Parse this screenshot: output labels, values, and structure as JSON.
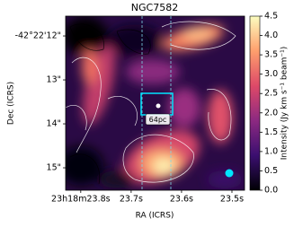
{
  "chart_data": {
    "type": "image",
    "title": "NGC7582",
    "xlabel": "RA (ICRS)",
    "ylabel": "Dec (ICRS)",
    "xlim": [
      23.83,
      23.475
    ],
    "xticks": [
      {
        "value": 23.8,
        "label": "23h18m23.8s"
      },
      {
        "value": 23.7,
        "label": "23.7s"
      },
      {
        "value": 23.6,
        "label": "23.6s"
      },
      {
        "value": 23.5,
        "label": "23.5s"
      }
    ],
    "ylim": [
      15.51,
      11.55
    ],
    "yticks": [
      {
        "value": 12,
        "label": "-42°22'12\""
      },
      {
        "value": 13,
        "label": "13\""
      },
      {
        "value": 14,
        "label": "14\""
      },
      {
        "value": 15,
        "label": "15\""
      }
    ],
    "colorbar": {
      "label": "Intensity (Jy km s⁻¹ beam⁻¹)",
      "clim": [
        0,
        4.5
      ],
      "ticks": [
        {
          "value": 0,
          "label": "0.0"
        },
        0.5,
        {
          "value": 1,
          "label": "1.0"
        },
        1.5,
        {
          "value": 2,
          "label": "2.0"
        },
        2.5,
        {
          "value": 3,
          "label": "3.0"
        },
        3.5,
        {
          "value": 4,
          "label": "4.0"
        },
        4.5
      ],
      "colormap": [
        "#000004",
        "#3b0f70",
        "#8c2981",
        "#de4968",
        "#fe9f6d",
        "#fcfdbf"
      ]
    },
    "annotations": [
      {
        "text": "64pc"
      }
    ]
  }
}
